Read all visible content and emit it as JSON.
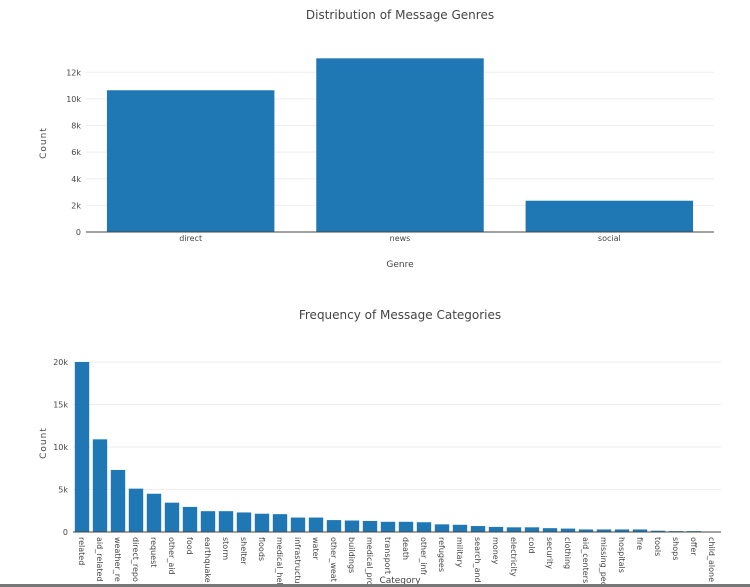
{
  "chart_data": [
    {
      "type": "bar",
      "title": "Distribution of Message Genres",
      "xlabel": "Genre",
      "ylabel": "Count",
      "categories": [
        "direct",
        "news",
        "social"
      ],
      "values": [
        10650,
        13050,
        2350
      ],
      "ylim": [
        0,
        13600
      ],
      "yticks": [
        0,
        2000,
        4000,
        6000,
        8000,
        10000,
        12000
      ],
      "ytick_labels": [
        "0",
        "2k",
        "4k",
        "6k",
        "8k",
        "10k",
        "12k"
      ],
      "grid": true,
      "color": "#1f77b4"
    },
    {
      "type": "bar",
      "title": "Frequency of Message Categories",
      "xlabel": "Category",
      "ylabel": "Count",
      "categories": [
        "related",
        "aid_related",
        "weather_re",
        "direct_repo",
        "request",
        "other_aid",
        "food",
        "earthquake",
        "storm",
        "shelter",
        "floods",
        "medical_hel",
        "infrastructu",
        "water",
        "other_weat",
        "buildings",
        "medical_pro",
        "transport",
        "death",
        "other_infras",
        "refugees",
        "military",
        "search_and",
        "money",
        "electricity",
        "cold",
        "security",
        "clothing",
        "aid_centers",
        "missing_peo",
        "hospitals",
        "fire",
        "tools",
        "shops",
        "offer",
        "child_alone"
      ],
      "values": [
        20000,
        10900,
        7300,
        5100,
        4500,
        3450,
        2950,
        2450,
        2450,
        2300,
        2150,
        2100,
        1700,
        1700,
        1400,
        1350,
        1300,
        1200,
        1200,
        1150,
        900,
        850,
        700,
        600,
        550,
        550,
        450,
        400,
        300,
        300,
        300,
        300,
        150,
        100,
        100,
        0
      ],
      "ylim": [
        0,
        20000
      ],
      "yticks": [
        0,
        5000,
        10000,
        15000,
        20000
      ],
      "ytick_labels": [
        "0",
        "5k",
        "10k",
        "15k",
        "20k"
      ],
      "grid": true,
      "color": "#1f77b4"
    }
  ]
}
